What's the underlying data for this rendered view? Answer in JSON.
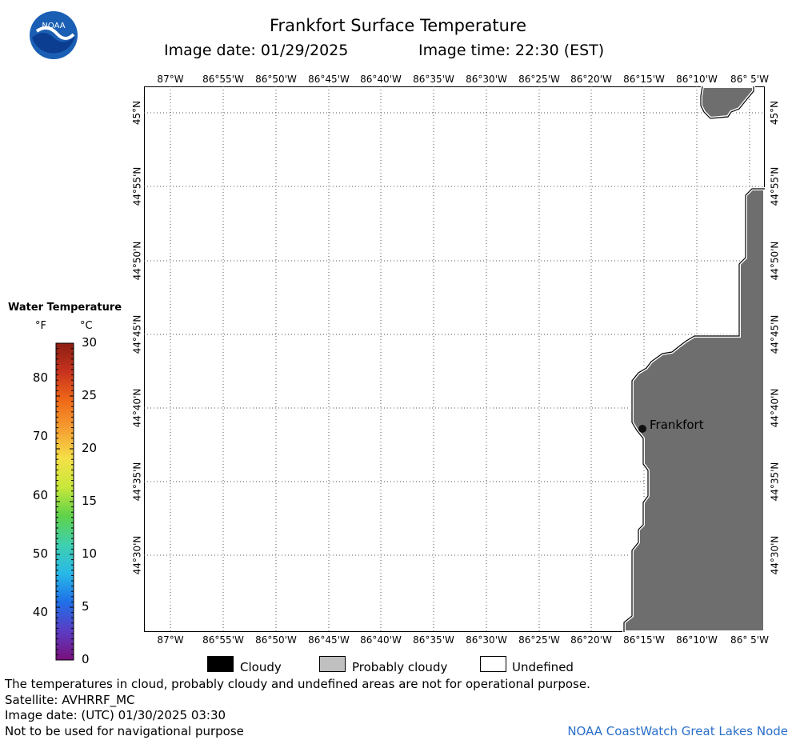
{
  "header": {
    "title": "Frankfort Surface Temperature",
    "image_date_text": "Image date: 01/29/2025",
    "image_time_text": "Image time: 22:30 (EST)",
    "logo_text": "NOAA"
  },
  "map": {
    "lon_labels": [
      "87°W",
      "86°55'W",
      "86°50'W",
      "86°45'W",
      "86°40'W",
      "86°35'W",
      "86°30'W",
      "86°25'W",
      "86°20'W",
      "86°15'W",
      "86°10'W",
      "86° 5'W"
    ],
    "lat_labels": [
      "45°N",
      "44°55'N",
      "44°50'N",
      "44°45'N",
      "44°40'N",
      "44°35'N",
      "44°30'N"
    ],
    "land_color": "#6e6e6e",
    "city": {
      "name": "Frankfort"
    }
  },
  "colorbar": {
    "title": "Water Temperature",
    "unit_f": "°F",
    "unit_c": "°C",
    "f_ticks": [
      "80",
      "70",
      "60",
      "50",
      "40"
    ],
    "c_ticks": [
      "30",
      "25",
      "20",
      "15",
      "10",
      "5",
      "0"
    ],
    "gradient_colors": [
      "#7b0f7b",
      "#5b3cc4",
      "#1f6fe8",
      "#28b8e8",
      "#3fd0b0",
      "#5ed24a",
      "#c8e83a",
      "#f5e048",
      "#f5a032",
      "#f06a18",
      "#c8321e",
      "#8b1e12"
    ]
  },
  "key": {
    "cloudy": "Cloudy",
    "probably_cloudy": "Probably cloudy",
    "undefined": "Undefined",
    "cloudy_color": "#000000",
    "probably_cloudy_color": "#c0c0c0",
    "undefined_color": "#ffffff"
  },
  "footer": {
    "disclaimer": "The temperatures in cloud, probably cloudy and undefined areas are not for operational purpose.",
    "satellite": "Satellite: AVHRRF_MC",
    "utc_date": "Image date: (UTC) 01/30/2025  03:30",
    "nav_note": "Not to be used for navigational purpose",
    "credit": "NOAA CoastWatch Great Lakes Node"
  }
}
